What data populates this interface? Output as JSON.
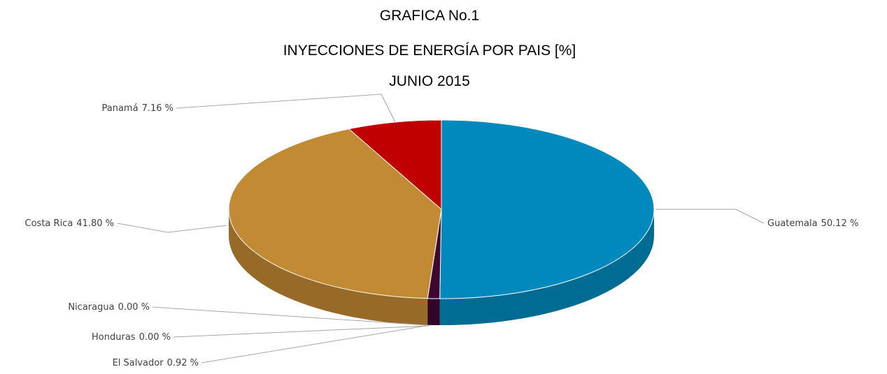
{
  "chart_data": {
    "type": "pie",
    "title": "GRAFICA No.1",
    "subtitle": "INYECCIONES DE ENERGÍA POR PAIS [%]",
    "date": "JUNIO 2015",
    "categories": [
      "Guatemala",
      "El Salvador",
      "Honduras",
      "Nicaragua",
      "Costa Rica",
      "Panamá"
    ],
    "values": [
      50.12,
      0.92,
      0.0,
      0.0,
      41.8,
      7.16
    ],
    "value_labels": [
      "50.12 %",
      "0.92 %",
      "0.00 %",
      "0.00 %",
      "41.80 %",
      "7.16 %"
    ],
    "colors": [
      "#0089bd",
      "#3e0833",
      "#7a6a2a",
      "#d8a23c",
      "#c28a33",
      "#c00000"
    ]
  }
}
